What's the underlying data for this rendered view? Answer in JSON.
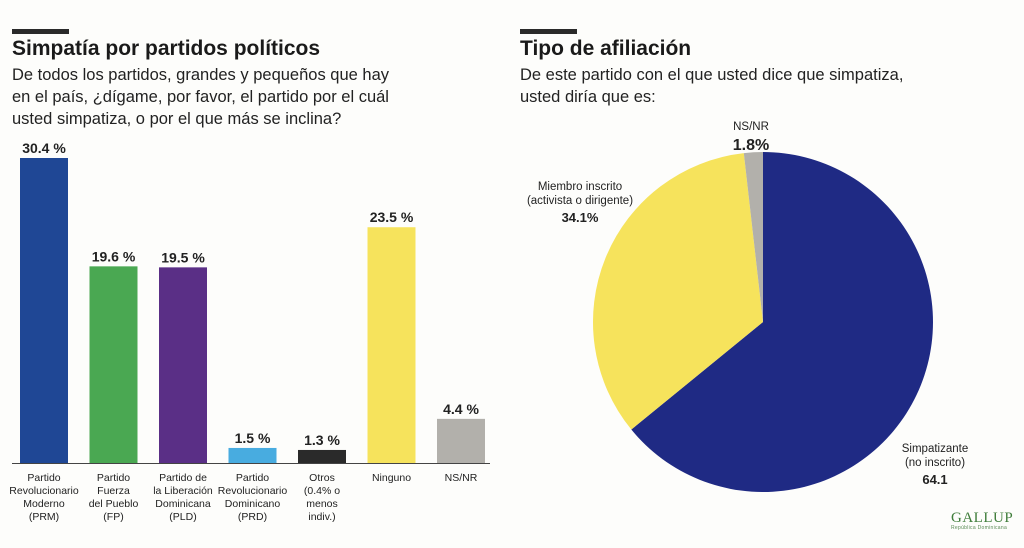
{
  "left_panel": {
    "title": "Simpatía por partidos políticos",
    "subtitle": "De todos los partidos, grandes y pequeños que hay en el país, ¿dígame, por favor, el partido por el cuál usted simpatiza, o por el que más se inclina?"
  },
  "right_panel": {
    "title": "Tipo de afiliación",
    "subtitle": "De este partido con el que usted dice que simpatiza, usted diría que es:"
  },
  "logo": {
    "name": "GALLUP",
    "tagline": "República Dominicana"
  },
  "chart_data": [
    {
      "type": "bar",
      "title": "Simpatía por partidos políticos",
      "categories": [
        [
          "Partido",
          "Revolucionario",
          "Moderno",
          "(PRM)"
        ],
        [
          "Partido",
          "Fuerza",
          "del Pueblo",
          "(FP)"
        ],
        [
          "Partido de",
          "la Liberación",
          "Dominicana",
          "(PLD)"
        ],
        [
          "Partido",
          "Revolucionario",
          "Dominicano",
          "(PRD)"
        ],
        [
          "Otros",
          "(0.4% o",
          "menos",
          "indiv.)"
        ],
        [
          "Ninguno"
        ],
        [
          "NS/NR"
        ]
      ],
      "values": [
        30.4,
        19.6,
        19.5,
        1.5,
        1.3,
        23.5,
        4.4
      ],
      "value_labels": [
        "30.4  %",
        "19.6  %",
        "19.5  %",
        "1.5  %",
        "1.3  %",
        "23.5  %",
        "4.4  %"
      ],
      "colors": [
        "#1f4795",
        "#4aa852",
        "#5a2f86",
        "#48ace0",
        "#2a2a2a",
        "#f6e35c",
        "#b2b0ab"
      ],
      "ylim": [
        0,
        30.4
      ]
    },
    {
      "type": "pie",
      "title": "Tipo de afiliación",
      "slices": [
        {
          "label": [
            "Simpatizante",
            "(no inscrito)"
          ],
          "value": 64.1,
          "value_label": "64.1",
          "color": "#1f2a84"
        },
        {
          "label": [
            "Miembro inscrito",
            "(activista o dirigente)"
          ],
          "value": 34.1,
          "value_label": "34.1%",
          "color": "#f6e35c"
        },
        {
          "label": [
            "NS/NR"
          ],
          "value": 1.8,
          "value_label": "1.8%",
          "color": "#b2b0ab"
        }
      ]
    }
  ]
}
